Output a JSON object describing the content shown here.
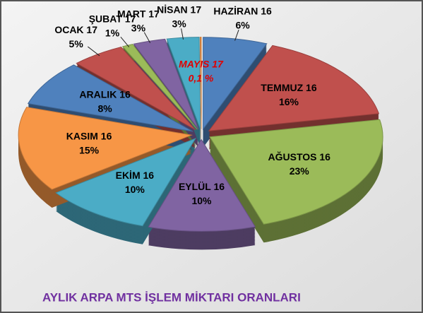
{
  "chart_data": {
    "type": "pie",
    "title": "AYLIK ARPA MTS İŞLEM MİKTARI ORANLARI",
    "categories": [
      "HAZİRAN 16",
      "TEMMUZ 16",
      "AĞUSTOS 16",
      "EYLÜL 16",
      "EKİM 16",
      "KASIM 16",
      "ARALIK 16",
      "OCAK 17",
      "ŞUBAT 17",
      "MART 17",
      "NİSAN 17",
      "MAYIS 17"
    ],
    "values": [
      6,
      16,
      23,
      10,
      10,
      15,
      8,
      5,
      1,
      3,
      3,
      0.1
    ],
    "value_labels": [
      "6%",
      "16%",
      "23%",
      "10%",
      "10%",
      "15%",
      "8%",
      "5%",
      "1%",
      "3%",
      "3%",
      "0,1 %"
    ],
    "colors": [
      "#4f81bd",
      "#c0504d",
      "#9bbb59",
      "#8064a2",
      "#4bacc6",
      "#f79646",
      "#4f81bd",
      "#c0504d",
      "#9bbb59",
      "#8064a2",
      "#4bacc6",
      "#f79646"
    ]
  }
}
